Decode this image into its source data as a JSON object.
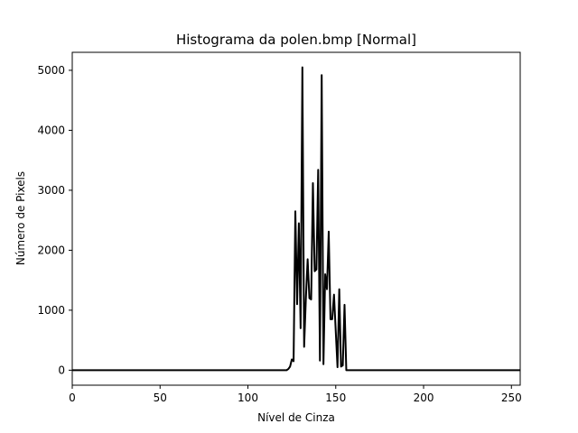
{
  "chart_data": {
    "type": "line",
    "title": "Histograma da polen.bmp [Normal]",
    "xlabel": "Nível de Cinza",
    "ylabel": "Número de Pixels",
    "xlim": [
      0,
      255
    ],
    "ylim": [
      -250,
      5300
    ],
    "xticks": [
      0,
      50,
      100,
      150,
      200,
      250
    ],
    "yticks": [
      0,
      1000,
      2000,
      3000,
      4000,
      5000
    ],
    "grid": false,
    "legend": "none",
    "line_color": "#000000",
    "series": [
      {
        "x": [
          0,
          122,
          123,
          124,
          125,
          126,
          127,
          128,
          129,
          130,
          131,
          132,
          133,
          134,
          135,
          136,
          137,
          138,
          139,
          140,
          141,
          142,
          143,
          144,
          145,
          146,
          147,
          148,
          149,
          150,
          151,
          152,
          153,
          154,
          155,
          156,
          157,
          255
        ],
        "y": [
          0,
          0,
          20,
          60,
          180,
          150,
          2650,
          1100,
          2450,
          700,
          5050,
          390,
          1200,
          1850,
          1200,
          1180,
          3120,
          1650,
          1680,
          3340,
          160,
          4920,
          100,
          1600,
          1350,
          2310,
          850,
          850,
          1260,
          650,
          50,
          1350,
          60,
          80,
          1090,
          0,
          0,
          0
        ]
      }
    ]
  }
}
